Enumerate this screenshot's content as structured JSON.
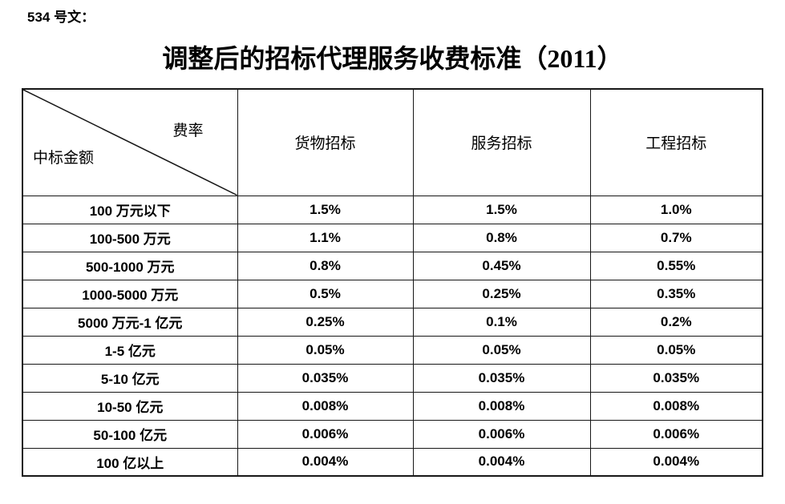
{
  "doc_ref": "534 号文：",
  "title": "调整后的招标代理服务收费标准（2011）",
  "table": {
    "corner": {
      "top_right": "费率",
      "bottom_left": "中标金额"
    },
    "columns": [
      "货物招标",
      "服务招标",
      "工程招标"
    ],
    "rows": [
      {
        "label": "100 万元以下",
        "values": [
          "1.5%",
          "1.5%",
          "1.0%"
        ]
      },
      {
        "label": "100-500 万元",
        "values": [
          "1.1%",
          "0.8%",
          "0.7%"
        ]
      },
      {
        "label": "500-1000 万元",
        "values": [
          "0.8%",
          "0.45%",
          "0.55%"
        ]
      },
      {
        "label": "1000-5000 万元",
        "values": [
          "0.5%",
          "0.25%",
          "0.35%"
        ]
      },
      {
        "label": "5000 万元-1 亿元",
        "values": [
          "0.25%",
          "0.1%",
          "0.2%"
        ]
      },
      {
        "label": "1-5 亿元",
        "values": [
          "0.05%",
          "0.05%",
          "0.05%"
        ]
      },
      {
        "label": "5-10 亿元",
        "values": [
          "0.035%",
          "0.035%",
          "0.035%"
        ]
      },
      {
        "label": "10-50 亿元",
        "values": [
          "0.008%",
          "0.008%",
          "0.008%"
        ]
      },
      {
        "label": "50-100 亿元",
        "values": [
          "0.006%",
          "0.006%",
          "0.006%"
        ]
      },
      {
        "label": "100 亿以上",
        "values": [
          "0.004%",
          "0.004%",
          "0.004%"
        ]
      }
    ],
    "colors": {
      "text": "#000000",
      "border": "#171717",
      "background": "#ffffff"
    }
  }
}
